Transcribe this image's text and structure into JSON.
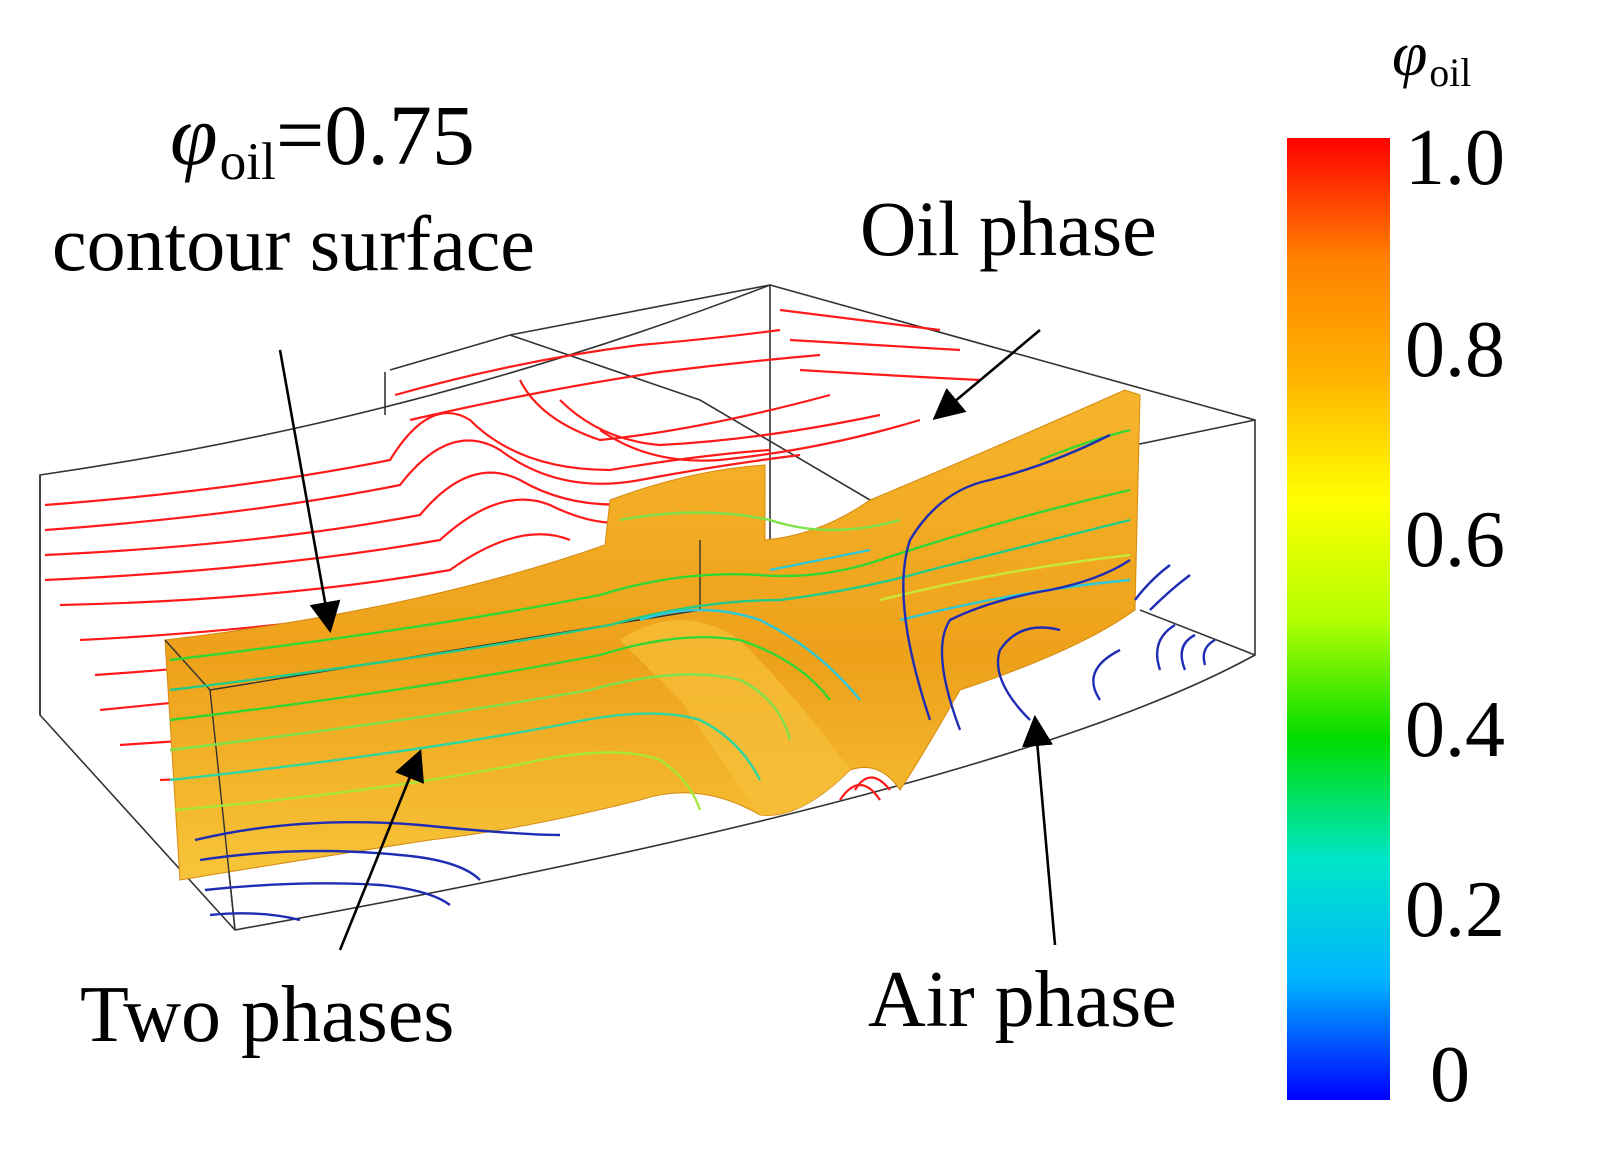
{
  "annotations": {
    "contour_symbol": "φ",
    "contour_subscript": "oil",
    "contour_value": "=0.75",
    "contour_caption": "contour surface",
    "oil_phase": "Oil phase",
    "two_phases": "Two phases",
    "air_phase": "Air phase"
  },
  "colorbar": {
    "symbol": "φ",
    "subscript": "oil",
    "ticks": [
      "1.0",
      "0.8",
      "0.6",
      "0.4",
      "0.2",
      "0"
    ],
    "stops": [
      "#0000ff",
      "#00b4ff",
      "#00e6c8",
      "#00dc00",
      "#b4ff00",
      "#ffff00",
      "#ffb400",
      "#ff8000",
      "#ff0000"
    ]
  },
  "colors": {
    "oil_streamline": "#ff0000",
    "air_streamline": "#1f1fb4",
    "interface_streamline": "#33d633",
    "contour_surface": "#f0a51c",
    "outline": "#333333"
  }
}
